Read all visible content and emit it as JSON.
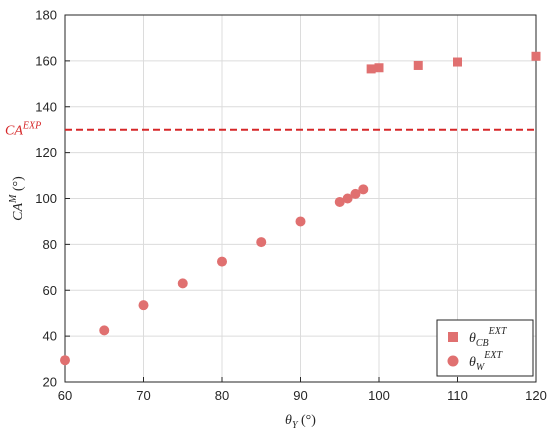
{
  "chart_data": {
    "type": "scatter",
    "xlim": [
      60,
      120
    ],
    "ylim": [
      20,
      180
    ],
    "x_ticks": [
      "60",
      "70",
      "80",
      "90",
      "100",
      "110",
      "120"
    ],
    "y_ticks": [
      "20",
      "40",
      "60",
      "80",
      "100",
      "120",
      "140",
      "160",
      "180"
    ],
    "x_tick_values": [
      60,
      70,
      80,
      90,
      100,
      110,
      120
    ],
    "y_tick_values": [
      20,
      40,
      60,
      80,
      100,
      120,
      140,
      160,
      180
    ],
    "xlabel": {
      "main": "θ",
      "sub": "Y",
      "unit": " (°)"
    },
    "ylabel": {
      "main": "CA",
      "sup": "M",
      "unit": " (°)"
    },
    "grid": true,
    "legend_position": "bottom-right",
    "reference_line": {
      "value": 130,
      "label_main": "CA",
      "label_sup": "EXP",
      "style": "dashed",
      "color": "#d62728"
    },
    "series": [
      {
        "name": "θCB EXT",
        "label_main": "θ",
        "label_sub": "CB",
        "label_sup": "EXT",
        "marker": "square",
        "color": "#e07070",
        "x": [
          99,
          100,
          105,
          110,
          120
        ],
        "y": [
          156.5,
          157,
          158,
          159.5,
          162
        ]
      },
      {
        "name": "θW EXT",
        "label_main": "θ",
        "label_sub": "W",
        "label_sup": "EXT",
        "marker": "circle",
        "color": "#e07070",
        "x": [
          60,
          65,
          70,
          75,
          80,
          85,
          90,
          95,
          96,
          97,
          98
        ],
        "y": [
          29.5,
          42.5,
          53.5,
          63,
          72.5,
          81,
          90,
          98.5,
          100,
          102,
          104
        ]
      }
    ]
  }
}
